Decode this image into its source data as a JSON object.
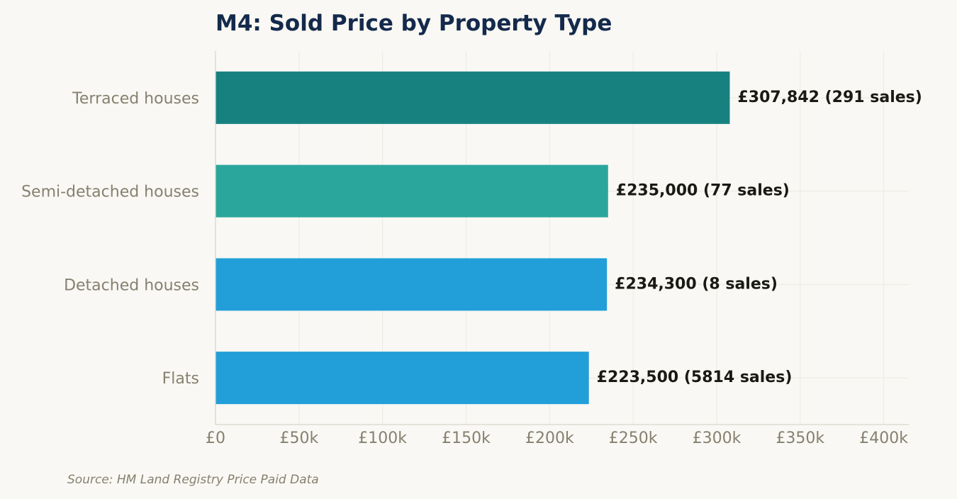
{
  "chart_data": {
    "type": "bar",
    "orientation": "horizontal",
    "title": "M4: Sold Price by Property Type",
    "categories": [
      "Terraced houses",
      "Semi-detached houses",
      "Detached houses",
      "Flats"
    ],
    "values": [
      307842,
      235000,
      234300,
      223500
    ],
    "sales": [
      291,
      77,
      8,
      5814
    ],
    "value_labels": [
      "£307,842  (291 sales)",
      "£235,000  (77 sales)",
      "£234,300  (8 sales)",
      "£223,500  (5814 sales)"
    ],
    "colors": [
      "#178180",
      "#2ba69c",
      "#229ed9",
      "#229ed9"
    ],
    "xlim": [
      0,
      415000
    ],
    "xticks": [
      0,
      50000,
      100000,
      150000,
      200000,
      250000,
      300000,
      350000,
      400000
    ],
    "xtick_labels": [
      "£0",
      "£50k",
      "£100k",
      "£150k",
      "£200k",
      "£250k",
      "£300k",
      "£350k",
      "£400k"
    ],
    "xlabel": "",
    "ylabel": "",
    "grid": true,
    "legend": "none"
  },
  "source": "Source: HM Land Registry Price Paid Data"
}
